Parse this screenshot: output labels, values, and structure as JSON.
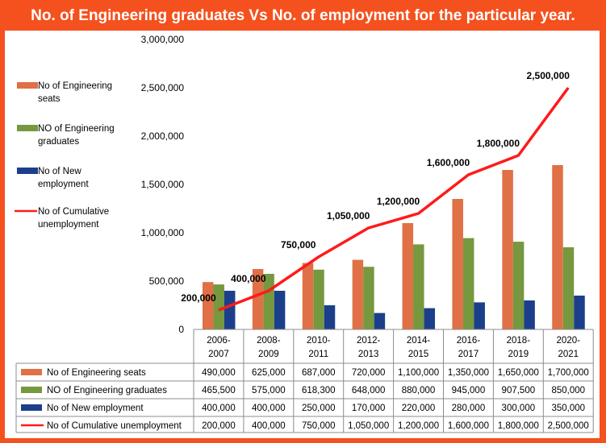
{
  "title": "No. of Engineering graduates Vs No. of employment for the particular year.",
  "colors": {
    "background": "#f4511e",
    "seats": "#e07046",
    "graduates": "#76983f",
    "employment": "#1c3f8c",
    "unemployment": "#ff1a1a"
  },
  "chart_data": {
    "type": "bar",
    "categories": [
      [
        "2006-",
        "2007"
      ],
      [
        "2008-",
        "2009"
      ],
      [
        "2010-",
        "2011"
      ],
      [
        "2012-",
        "2013"
      ],
      [
        "2014-",
        "2015"
      ],
      [
        "2016-",
        "2017"
      ],
      [
        "2018-",
        "2019"
      ],
      [
        "2020-",
        "2021"
      ]
    ],
    "y_ticks": [
      "3,000,000",
      "2,500,000",
      "2,000,000",
      "1,500,000",
      "1,000,000",
      "500,000",
      "0"
    ],
    "ylim": [
      0,
      3000000
    ],
    "grid": false,
    "legend_position": "left",
    "series": [
      {
        "name": "No of Engineering seats",
        "legend_label": [
          "No of Engineering",
          "seats"
        ],
        "type": "bar",
        "values": [
          490000,
          625000,
          687000,
          720000,
          1100000,
          1350000,
          1650000,
          1700000
        ],
        "table_values": [
          "490,000",
          "625,000",
          "687,000",
          "720,000",
          "1,100,000",
          "1,350,000",
          "1,650,000",
          "1,700,000"
        ]
      },
      {
        "name": "NO of Engineering graduates",
        "legend_label": [
          "NO of Engineering",
          "graduates"
        ],
        "type": "bar",
        "values": [
          465500,
          575000,
          618300,
          648000,
          880000,
          945000,
          907500,
          850000
        ],
        "table_values": [
          "465,500",
          "575,000",
          "618,300",
          "648,000",
          "880,000",
          "945,000",
          "907,500",
          "850,000"
        ]
      },
      {
        "name": "No of New employment",
        "legend_label": [
          "No of New",
          "employment"
        ],
        "type": "bar",
        "values": [
          400000,
          400000,
          250000,
          170000,
          220000,
          280000,
          300000,
          350000
        ],
        "table_values": [
          "400,000",
          "400,000",
          "250,000",
          "170,000",
          "220,000",
          "280,000",
          "300,000",
          "350,000"
        ]
      },
      {
        "name": "No of Cumulative unemployment",
        "legend_label": [
          "No of Cumulative",
          "unemployment"
        ],
        "type": "line",
        "values": [
          200000,
          400000,
          750000,
          1050000,
          1200000,
          1600000,
          1800000,
          2500000
        ],
        "table_values": [
          "200,000",
          "400,000",
          "750,000",
          "1,050,000",
          "1,200,000",
          "1,600,000",
          "1,800,000",
          "2,500,000"
        ],
        "data_labels": [
          "200,000",
          "400,000",
          "750,000",
          "1,050,000",
          "1,200,000",
          "1,600,000",
          "1,800,000",
          "2,500,000"
        ]
      }
    ]
  }
}
